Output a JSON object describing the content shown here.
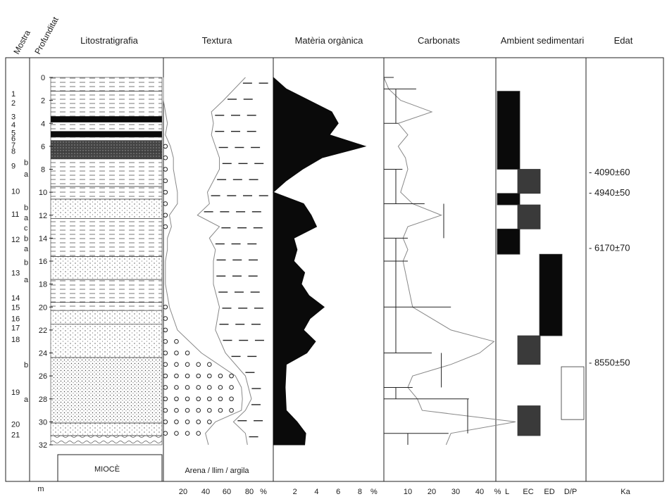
{
  "chart_data": {
    "type": "stratigraphic-column",
    "columns": {
      "mostra": "Mostra",
      "profunditat": "Profunditat",
      "litostratigrafia": "Litostratigrafia",
      "textura": "Textura",
      "materia_organica": "Matèria orgànica",
      "carbonats": "Carbonats",
      "ambient": "Ambient sedimentari",
      "edat": "Edat"
    },
    "depth_unit": "m",
    "depth_ticks": [
      0,
      2,
      4,
      6,
      8,
      10,
      12,
      14,
      16,
      18,
      20,
      22,
      24,
      26,
      28,
      30,
      32
    ],
    "base_label": "MIOCÈ",
    "samples": [
      {
        "label": "1",
        "depth": 1.4
      },
      {
        "label": "2",
        "depth": 2.2
      },
      {
        "label": "3",
        "depth": 3.4
      },
      {
        "label": "4",
        "depth": 4.1
      },
      {
        "label": "5",
        "depth": 4.8
      },
      {
        "label": "6",
        "depth": 5.3
      },
      {
        "label": "7",
        "depth": 5.9
      },
      {
        "label": "8",
        "depth": 6.4
      },
      {
        "label": "9",
        "depth": 7.7
      },
      {
        "label": "b",
        "depth": 7.4
      },
      {
        "label": "a",
        "depth": 8.4
      },
      {
        "label": "10",
        "depth": 9.9
      },
      {
        "label": "11",
        "depth": 11.9
      },
      {
        "label": "b",
        "depth": 11.3
      },
      {
        "label": "a",
        "depth": 12.2
      },
      {
        "label": "c",
        "depth": 13.1
      },
      {
        "label": "12",
        "depth": 14.1
      },
      {
        "label": "b",
        "depth": 14.0
      },
      {
        "label": "a",
        "depth": 14.9
      },
      {
        "label": "b",
        "depth": 16.1
      },
      {
        "label": "13",
        "depth": 17.0
      },
      {
        "label": "a",
        "depth": 17.6
      },
      {
        "label": "14",
        "depth": 19.2
      },
      {
        "label": "15",
        "depth": 20.0
      },
      {
        "label": "16",
        "depth": 21.0
      },
      {
        "label": "17",
        "depth": 21.8
      },
      {
        "label": "18",
        "depth": 22.8
      },
      {
        "label": "b",
        "depth": 25.0
      },
      {
        "label": "19",
        "depth": 27.4
      },
      {
        "label": "a",
        "depth": 28.0
      },
      {
        "label": "20",
        "depth": 30.2
      },
      {
        "label": "21",
        "depth": 31.1
      }
    ],
    "textura": {
      "axis_label": "Arena / llim / argila",
      "ticks": [
        "20",
        "40",
        "60",
        "80",
        "%"
      ],
      "sand_pct": [
        [
          0,
          0
        ],
        [
          2,
          0
        ],
        [
          4,
          4
        ],
        [
          5,
          2
        ],
        [
          6,
          7
        ],
        [
          7,
          10
        ],
        [
          8,
          10
        ],
        [
          10,
          14
        ],
        [
          11,
          14
        ],
        [
          12,
          6
        ],
        [
          13,
          8
        ],
        [
          14,
          4
        ],
        [
          15,
          4
        ],
        [
          16,
          2
        ],
        [
          18,
          2
        ],
        [
          20,
          6
        ],
        [
          22,
          14
        ],
        [
          24,
          38
        ],
        [
          26,
          72
        ],
        [
          27,
          78
        ],
        [
          28,
          79
        ],
        [
          29,
          78
        ],
        [
          30,
          52
        ],
        [
          31,
          42
        ],
        [
          32,
          45
        ]
      ],
      "silt_pct": [
        [
          0,
          82
        ],
        [
          2,
          60
        ],
        [
          3,
          48
        ],
        [
          4,
          50
        ],
        [
          5,
          48
        ],
        [
          6,
          52
        ],
        [
          7,
          56
        ],
        [
          8,
          56
        ],
        [
          10,
          44
        ],
        [
          11,
          46
        ],
        [
          12,
          34
        ],
        [
          13,
          56
        ],
        [
          14,
          46
        ],
        [
          15,
          52
        ],
        [
          16,
          50
        ],
        [
          18,
          50
        ],
        [
          20,
          56
        ],
        [
          22,
          52
        ],
        [
          24,
          62
        ],
        [
          26,
          82
        ],
        [
          28,
          88
        ],
        [
          29,
          82
        ],
        [
          30,
          70
        ],
        [
          31,
          82
        ],
        [
          32,
          84
        ]
      ]
    },
    "materia_organica": {
      "ticks": [
        "2",
        "4",
        "6",
        "8",
        "%"
      ],
      "xlim": [
        0,
        9.5
      ],
      "profile": [
        [
          0,
          0
        ],
        [
          1,
          1.2
        ],
        [
          3,
          5.4
        ],
        [
          4,
          6
        ],
        [
          5,
          5.2
        ],
        [
          6,
          8.5
        ],
        [
          7,
          4.5
        ],
        [
          8,
          2.7
        ],
        [
          9,
          1.2
        ],
        [
          10,
          0
        ],
        [
          11,
          2.8
        ],
        [
          12,
          3.5
        ],
        [
          13,
          4
        ],
        [
          14,
          1.9
        ],
        [
          15,
          2.2
        ],
        [
          16,
          1.9
        ],
        [
          17,
          2.9
        ],
        [
          18,
          2.6
        ],
        [
          19,
          3.3
        ],
        [
          20,
          4.7
        ],
        [
          21,
          3.4
        ],
        [
          22,
          2.8
        ],
        [
          23,
          3.9
        ],
        [
          24,
          3.1
        ],
        [
          25,
          1.2
        ],
        [
          27,
          1.1
        ],
        [
          29,
          1.2
        ],
        [
          30,
          2.2
        ],
        [
          31,
          3
        ],
        [
          32,
          2.9
        ]
      ]
    },
    "carbonats": {
      "ticks": [
        "10",
        "20",
        "30",
        "40",
        "%"
      ],
      "xlim": [
        0,
        50
      ],
      "profile": [
        [
          0,
          0
        ],
        [
          1,
          2
        ],
        [
          2,
          7
        ],
        [
          3,
          20
        ],
        [
          4,
          6
        ],
        [
          5,
          10
        ],
        [
          6,
          6
        ],
        [
          7,
          9
        ],
        [
          8,
          10
        ],
        [
          10,
          7
        ],
        [
          11,
          12
        ],
        [
          12,
          24
        ],
        [
          13,
          10
        ],
        [
          14,
          8
        ],
        [
          15,
          10
        ],
        [
          16,
          8
        ],
        [
          18,
          10
        ],
        [
          20,
          12
        ],
        [
          22,
          28
        ],
        [
          23,
          46
        ],
        [
          24,
          40
        ],
        [
          25,
          28
        ],
        [
          26,
          12
        ],
        [
          27,
          10
        ],
        [
          28,
          14
        ],
        [
          29,
          16
        ],
        [
          30,
          55
        ],
        [
          31,
          28
        ],
        [
          32,
          26
        ]
      ],
      "steps": [
        [
          0,
          1,
          0
        ],
        [
          1,
          4,
          5
        ],
        [
          4,
          8,
          0
        ],
        [
          8,
          11,
          5
        ],
        [
          11,
          14,
          25
        ],
        [
          14,
          16,
          5
        ],
        [
          16,
          20,
          5
        ],
        [
          20,
          24,
          5
        ],
        [
          24,
          27,
          24
        ],
        [
          27,
          28,
          5
        ],
        [
          28,
          31,
          35
        ],
        [
          31,
          32,
          10
        ]
      ]
    },
    "ambient": {
      "ticks": [
        "L",
        "EC",
        "ED",
        "D/P"
      ],
      "blocks": [
        {
          "depth": [
            1.2,
            8.0
          ],
          "env": "L",
          "fill": "#0a0a0a"
        },
        {
          "depth": [
            8.0,
            10.1
          ],
          "env": "EC",
          "fill": "#3a3a3a"
        },
        {
          "depth": [
            10.1,
            11.1
          ],
          "env": "L",
          "fill": "#0a0a0a"
        },
        {
          "depth": [
            11.1,
            13.2
          ],
          "env": "EC",
          "fill": "#3a3a3a"
        },
        {
          "depth": [
            13.2,
            15.4
          ],
          "env": "L",
          "fill": "#0a0a0a"
        },
        {
          "depth": [
            15.4,
            22.5
          ],
          "env": "ED",
          "fill": "#0a0a0a"
        },
        {
          "depth": [
            22.5,
            25.0
          ],
          "env": "EC",
          "fill": "#3a3a3a"
        },
        {
          "depth": [
            25.2,
            29.8
          ],
          "env": "D/P",
          "fill": "none"
        },
        {
          "depth": [
            28.6,
            31.2
          ],
          "env": "EC",
          "fill": "#3a3a3a"
        }
      ]
    },
    "edat": {
      "unit": "Ka",
      "dates": [
        {
          "label": "- 4090±60",
          "depth": 8.2
        },
        {
          "label": "- 4940±50",
          "depth": 10.0
        },
        {
          "label": "- 6170±70",
          "depth": 14.8
        },
        {
          "label": "- 8550±50",
          "depth": 24.8
        }
      ]
    },
    "lithology_bands": [
      {
        "depth": [
          0.0,
          1.2
        ],
        "pattern": "dash"
      },
      {
        "depth": [
          1.2,
          3.4
        ],
        "pattern": "dash"
      },
      {
        "depth": [
          3.4,
          3.9
        ],
        "pattern": "black"
      },
      {
        "depth": [
          3.9,
          4.7
        ],
        "pattern": "dash"
      },
      {
        "depth": [
          4.7,
          5.2
        ],
        "pattern": "black"
      },
      {
        "depth": [
          5.2,
          5.5
        ],
        "pattern": "dash"
      },
      {
        "depth": [
          5.5,
          6.5
        ],
        "pattern": "dark"
      },
      {
        "depth": [
          6.5,
          7.1
        ],
        "pattern": "dark"
      },
      {
        "depth": [
          7.1,
          9.5
        ],
        "pattern": "dash"
      },
      {
        "depth": [
          9.5,
          10.6
        ],
        "pattern": "dash"
      },
      {
        "depth": [
          10.6,
          12.3
        ],
        "pattern": "dot"
      },
      {
        "depth": [
          12.3,
          15.6
        ],
        "pattern": "dash"
      },
      {
        "depth": [
          15.6,
          17.6
        ],
        "pattern": "dot"
      },
      {
        "depth": [
          17.6,
          19.6
        ],
        "pattern": "dash"
      },
      {
        "depth": [
          19.6,
          20.3
        ],
        "pattern": "dash"
      },
      {
        "depth": [
          20.3,
          21.5
        ],
        "pattern": "dot"
      },
      {
        "depth": [
          21.5,
          24.4
        ],
        "pattern": "dot"
      },
      {
        "depth": [
          24.4,
          30.1
        ],
        "pattern": "dense"
      },
      {
        "depth": [
          30.1,
          31.2
        ],
        "pattern": "dot"
      },
      {
        "depth": [
          31.2,
          32.0
        ],
        "pattern": "wavy"
      }
    ]
  }
}
